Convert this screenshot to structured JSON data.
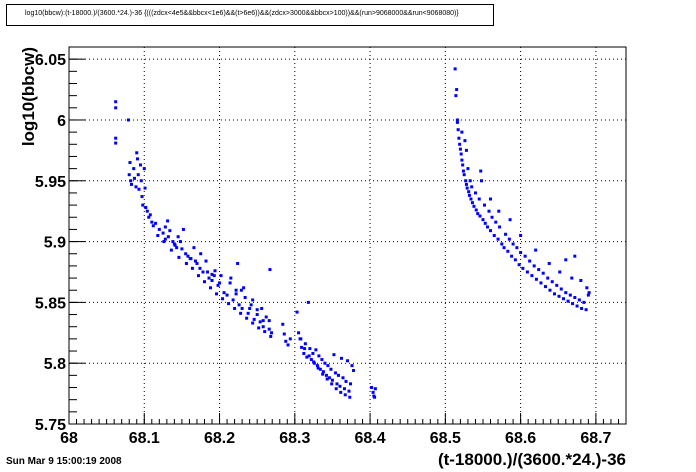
{
  "chart_data": {
    "type": "scatter",
    "title": "log10(bbcw):(t-18000.)/(3600.*24.)-36 {(((zdcx<4e5&&bbcx<1e6)&&(t>6e6))&&(zdcx>3000&&bbcx>100))&&(run>9068000&&run<9068080)}",
    "xlabel": "(t-18000.)/(3600.*24.)-36",
    "ylabel": "log10(bbcw)",
    "xlim": [
      68,
      68.74
    ],
    "ylim": [
      5.75,
      6.06
    ],
    "xticks": [
      "68",
      "68.1",
      "68.2",
      "68.3",
      "68.4",
      "68.5",
      "68.6",
      "68.7"
    ],
    "yticks": [
      "5.75",
      "5.8",
      "5.85",
      "5.9",
      "5.95",
      "6",
      "6.05"
    ],
    "grid": true,
    "marker_color": "#0000ff",
    "series": [
      {
        "points": [
          [
            68.062,
            6.015
          ],
          [
            68.062,
            6.01
          ],
          [
            68.062,
            5.985
          ],
          [
            68.062,
            5.981
          ],
          [
            68.079,
            6.0
          ],
          [
            68.081,
            5.965
          ],
          [
            68.08,
            5.955
          ],
          [
            68.082,
            5.95
          ],
          [
            68.083,
            5.947
          ],
          [
            68.086,
            5.96
          ],
          [
            68.087,
            5.952
          ],
          [
            68.089,
            5.945
          ],
          [
            68.09,
            5.973
          ],
          [
            68.091,
            5.968
          ],
          [
            68.092,
            5.955
          ],
          [
            68.093,
            5.943
          ],
          [
            68.095,
            5.963
          ],
          [
            68.096,
            5.95
          ],
          [
            68.097,
            5.937
          ],
          [
            68.098,
            5.93
          ],
          [
            68.1,
            5.96
          ],
          [
            68.101,
            5.944
          ],
          [
            68.102,
            5.928
          ],
          [
            68.104,
            5.925
          ],
          [
            68.106,
            5.92
          ],
          [
            68.108,
            5.922
          ],
          [
            68.115,
            5.915
          ],
          [
            68.12,
            5.91
          ],
          [
            68.125,
            5.907
          ],
          [
            68.128,
            5.912
          ],
          [
            68.132,
            5.904
          ],
          [
            68.134,
            5.909
          ],
          [
            68.138,
            5.9
          ],
          [
            68.141,
            5.897
          ],
          [
            68.145,
            5.904
          ],
          [
            68.148,
            5.9
          ],
          [
            68.15,
            5.894
          ],
          [
            68.155,
            5.89
          ],
          [
            68.158,
            5.888
          ],
          [
            68.162,
            5.886
          ],
          [
            68.166,
            5.895
          ],
          [
            68.17,
            5.882
          ],
          [
            68.174,
            5.878
          ],
          [
            68.178,
            5.875
          ],
          [
            68.182,
            5.884
          ],
          [
            68.186,
            5.87
          ],
          [
            68.19,
            5.868
          ],
          [
            68.194,
            5.876
          ],
          [
            68.198,
            5.864
          ],
          [
            68.202,
            5.872
          ],
          [
            68.206,
            5.858
          ],
          [
            68.21,
            5.856
          ],
          [
            68.214,
            5.866
          ],
          [
            68.218,
            5.852
          ],
          [
            68.222,
            5.86
          ],
          [
            68.226,
            5.848
          ],
          [
            68.23,
            5.845
          ],
          [
            68.234,
            5.854
          ],
          [
            68.238,
            5.841
          ],
          [
            68.242,
            5.848
          ],
          [
            68.246,
            5.836
          ],
          [
            68.25,
            5.844
          ],
          [
            68.254,
            5.834
          ],
          [
            68.258,
            5.83
          ],
          [
            68.262,
            5.838
          ],
          [
            68.266,
            5.828
          ],
          [
            68.269,
            5.825
          ],
          [
            68.112,
            5.913
          ],
          [
            68.118,
            5.905
          ],
          [
            68.126,
            5.9
          ],
          [
            68.136,
            5.893
          ],
          [
            68.146,
            5.887
          ],
          [
            68.156,
            5.882
          ],
          [
            68.164,
            5.878
          ],
          [
            68.172,
            5.872
          ],
          [
            68.18,
            5.867
          ],
          [
            68.188,
            5.862
          ],
          [
            68.196,
            5.857
          ],
          [
            68.204,
            5.853
          ],
          [
            68.212,
            5.849
          ],
          [
            68.22,
            5.845
          ],
          [
            68.228,
            5.841
          ],
          [
            68.236,
            5.837
          ],
          [
            68.244,
            5.833
          ],
          [
            68.252,
            5.829
          ],
          [
            68.26,
            5.826
          ],
          [
            68.268,
            5.822
          ],
          [
            68.131,
            5.917
          ],
          [
            68.152,
            5.91
          ],
          [
            68.175,
            5.89
          ],
          [
            68.193,
            5.872
          ],
          [
            68.215,
            5.87
          ],
          [
            68.229,
            5.86
          ],
          [
            68.244,
            5.852
          ],
          [
            68.256,
            5.845
          ],
          [
            68.266,
            5.835
          ],
          [
            68.267,
            5.877
          ],
          [
            68.128,
            5.902
          ],
          [
            68.143,
            5.895
          ],
          [
            68.161,
            5.886
          ],
          [
            68.184,
            5.875
          ],
          [
            68.2,
            5.866
          ],
          [
            68.222,
            5.857
          ],
          [
            68.24,
            5.845
          ],
          [
            68.258,
            5.835
          ],
          [
            68.11,
            5.916
          ],
          [
            68.14,
            5.898
          ],
          [
            68.168,
            5.884
          ],
          [
            68.19,
            5.873
          ],
          [
            68.224,
            5.882
          ],
          [
            68.232,
            5.862
          ],
          [
            68.25,
            5.84
          ],
          [
            68.284,
            5.832
          ],
          [
            68.286,
            5.824
          ],
          [
            68.288,
            5.818
          ],
          [
            68.291,
            5.815
          ],
          [
            68.294,
            5.82
          ],
          [
            68.303,
            5.842
          ],
          [
            68.305,
            5.825
          ],
          [
            68.307,
            5.82
          ],
          [
            68.309,
            5.813
          ],
          [
            68.312,
            5.808
          ],
          [
            68.314,
            5.816
          ],
          [
            68.316,
            5.805
          ],
          [
            68.318,
            5.85
          ],
          [
            68.32,
            5.812
          ],
          [
            68.322,
            5.803
          ],
          [
            68.324,
            5.808
          ],
          [
            68.326,
            5.8
          ],
          [
            68.328,
            5.811
          ],
          [
            68.33,
            5.798
          ],
          [
            68.332,
            5.806
          ],
          [
            68.334,
            5.795
          ],
          [
            68.336,
            5.803
          ],
          [
            68.338,
            5.793
          ],
          [
            68.34,
            5.8
          ],
          [
            68.342,
            5.79
          ],
          [
            68.344,
            5.798
          ],
          [
            68.346,
            5.788
          ],
          [
            68.348,
            5.795
          ],
          [
            68.35,
            5.786
          ],
          [
            68.352,
            5.807
          ],
          [
            68.354,
            5.792
          ],
          [
            68.356,
            5.783
          ],
          [
            68.358,
            5.79
          ],
          [
            68.36,
            5.781
          ],
          [
            68.362,
            5.804
          ],
          [
            68.364,
            5.788
          ],
          [
            68.366,
            5.779
          ],
          [
            68.368,
            5.785
          ],
          [
            68.37,
            5.802
          ],
          [
            68.372,
            5.777
          ],
          [
            68.374,
            5.783
          ],
          [
            68.376,
            5.798
          ],
          [
            68.378,
            5.794
          ],
          [
            68.308,
            5.82
          ],
          [
            68.313,
            5.812
          ],
          [
            68.319,
            5.806
          ],
          [
            68.325,
            5.801
          ],
          [
            68.331,
            5.796
          ],
          [
            68.337,
            5.791
          ],
          [
            68.343,
            5.787
          ],
          [
            68.349,
            5.783
          ],
          [
            68.355,
            5.779
          ],
          [
            68.361,
            5.776
          ],
          [
            68.367,
            5.774
          ],
          [
            68.373,
            5.772
          ],
          [
            68.402,
            5.78
          ],
          [
            68.404,
            5.776
          ],
          [
            68.405,
            5.773
          ],
          [
            68.406,
            5.772
          ],
          [
            68.407,
            5.779
          ],
          [
            68.513,
            6.042
          ],
          [
            68.514,
            6.02
          ],
          [
            68.515,
            6.025
          ],
          [
            68.516,
            5.998
          ],
          [
            68.517,
            5.992
          ],
          [
            68.518,
            5.985
          ],
          [
            68.519,
            5.98
          ],
          [
            68.52,
            5.976
          ],
          [
            68.521,
            5.972
          ],
          [
            68.522,
            5.967
          ],
          [
            68.523,
            5.963
          ],
          [
            68.524,
            5.958
          ],
          [
            68.525,
            5.955
          ],
          [
            68.526,
            5.983
          ],
          [
            68.527,
            5.95
          ],
          [
            68.528,
            5.947
          ],
          [
            68.529,
            5.944
          ],
          [
            68.53,
            5.96
          ],
          [
            68.531,
            5.941
          ],
          [
            68.532,
            5.938
          ],
          [
            68.533,
            5.95
          ],
          [
            68.534,
            5.935
          ],
          [
            68.535,
            5.945
          ],
          [
            68.536,
            5.932
          ],
          [
            68.538,
            5.929
          ],
          [
            68.54,
            5.94
          ],
          [
            68.541,
            5.926
          ],
          [
            68.543,
            5.923
          ],
          [
            68.545,
            5.935
          ],
          [
            68.546,
            5.921
          ],
          [
            68.548,
            5.95
          ],
          [
            68.55,
            5.918
          ],
          [
            68.552,
            5.93
          ],
          [
            68.553,
            5.915
          ],
          [
            68.556,
            5.912
          ],
          [
            68.558,
            5.925
          ],
          [
            68.56,
            5.909
          ],
          [
            68.562,
            5.92
          ],
          [
            68.565,
            5.905
          ],
          [
            68.567,
            5.916
          ],
          [
            68.57,
            5.902
          ],
          [
            68.572,
            5.912
          ],
          [
            68.575,
            5.898
          ],
          [
            68.578,
            5.895
          ],
          [
            68.58,
            5.906
          ],
          [
            68.583,
            5.892
          ],
          [
            68.585,
            5.902
          ],
          [
            68.588,
            5.888
          ],
          [
            68.59,
            5.898
          ],
          [
            68.593,
            5.885
          ],
          [
            68.595,
            5.895
          ],
          [
            68.598,
            5.881
          ],
          [
            68.6,
            5.891
          ],
          [
            68.603,
            5.878
          ],
          [
            68.606,
            5.888
          ],
          [
            68.609,
            5.875
          ],
          [
            68.612,
            5.884
          ],
          [
            68.615,
            5.872
          ],
          [
            68.618,
            5.88
          ],
          [
            68.621,
            5.869
          ],
          [
            68.624,
            5.877
          ],
          [
            68.627,
            5.866
          ],
          [
            68.63,
            5.874
          ],
          [
            68.633,
            5.863
          ],
          [
            68.636,
            5.87
          ],
          [
            68.639,
            5.86
          ],
          [
            68.642,
            5.867
          ],
          [
            68.645,
            5.857
          ],
          [
            68.648,
            5.864
          ],
          [
            68.651,
            5.855
          ],
          [
            68.654,
            5.861
          ],
          [
            68.657,
            5.853
          ],
          [
            68.66,
            5.858
          ],
          [
            68.663,
            5.851
          ],
          [
            68.666,
            5.856
          ],
          [
            68.669,
            5.849
          ],
          [
            68.672,
            5.854
          ],
          [
            68.675,
            5.847
          ],
          [
            68.678,
            5.852
          ],
          [
            68.681,
            5.845
          ],
          [
            68.684,
            5.85
          ],
          [
            68.687,
            5.844
          ],
          [
            68.69,
            5.856
          ],
          [
            68.691,
            5.858
          ],
          [
            68.516,
            6.0
          ],
          [
            68.522,
            5.99
          ],
          [
            68.528,
            5.975
          ],
          [
            68.547,
            5.958
          ],
          [
            68.56,
            5.935
          ],
          [
            68.571,
            5.925
          ],
          [
            68.586,
            5.918
          ],
          [
            68.6,
            5.905
          ],
          [
            68.62,
            5.893
          ],
          [
            68.638,
            5.882
          ],
          [
            68.652,
            5.875
          ],
          [
            68.668,
            5.87
          ],
          [
            68.66,
            5.885
          ],
          [
            68.672,
            5.888
          ],
          [
            68.68,
            5.868
          ],
          [
            68.688,
            5.862
          ]
        ]
      }
    ]
  },
  "footer": {
    "datetime": "Sun Mar  9 15:00:19 2008"
  }
}
